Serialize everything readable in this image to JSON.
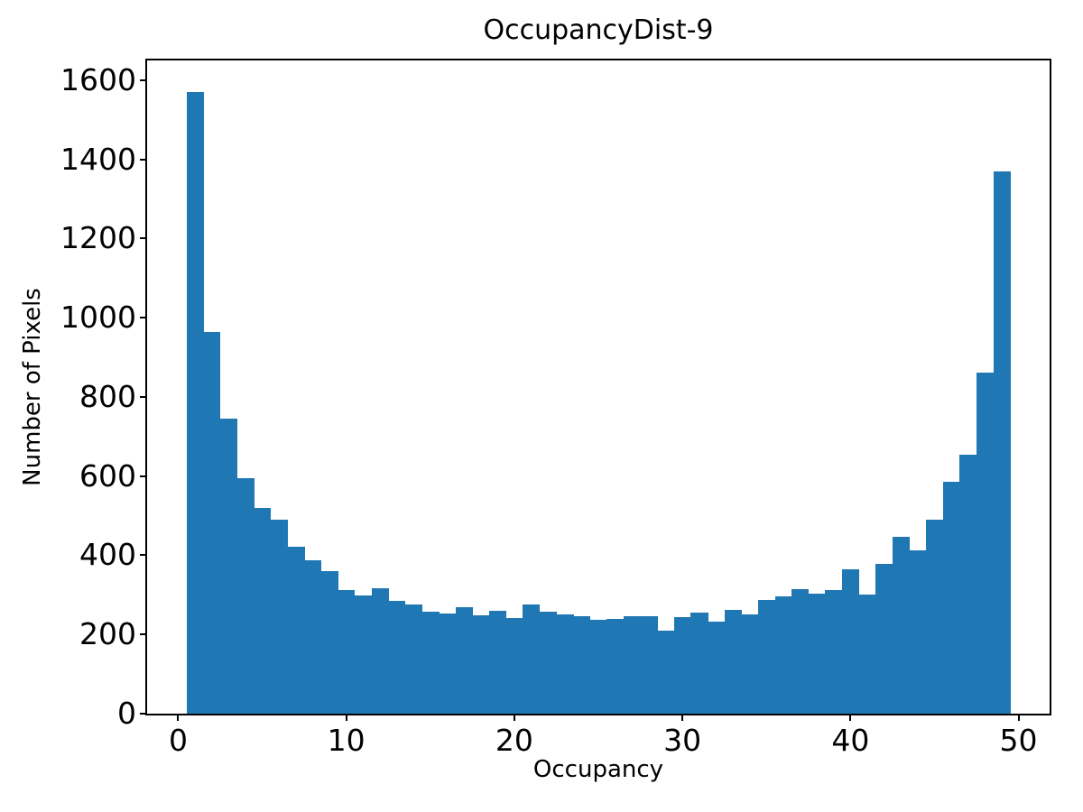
{
  "chart_data": {
    "type": "bar",
    "subtype": "histogram",
    "title": "OccupancyDist-9",
    "xlabel": "Occupancy",
    "ylabel": "Number of Pixels",
    "bar_color": "#1f77b4",
    "grid": false,
    "legend_position": "none",
    "bin_start": 0.5,
    "bin_width": 1,
    "values": [
      1570,
      965,
      745,
      595,
      520,
      490,
      422,
      388,
      360,
      312,
      298,
      316,
      285,
      275,
      258,
      254,
      268,
      248,
      260,
      241,
      276,
      257,
      251,
      245,
      236,
      240,
      245,
      245,
      210,
      243,
      255,
      232,
      262,
      250,
      288,
      297,
      315,
      303,
      313,
      365,
      300,
      378,
      447,
      412,
      490,
      585,
      655,
      862,
      1370
    ],
    "xticks": [
      0,
      10,
      20,
      30,
      40,
      50
    ],
    "yticks": [
      0,
      200,
      400,
      600,
      800,
      1000,
      1200,
      1400,
      1600
    ],
    "xlim": [
      -1.85,
      51.85
    ],
    "ylim": [
      0,
      1650
    ]
  }
}
